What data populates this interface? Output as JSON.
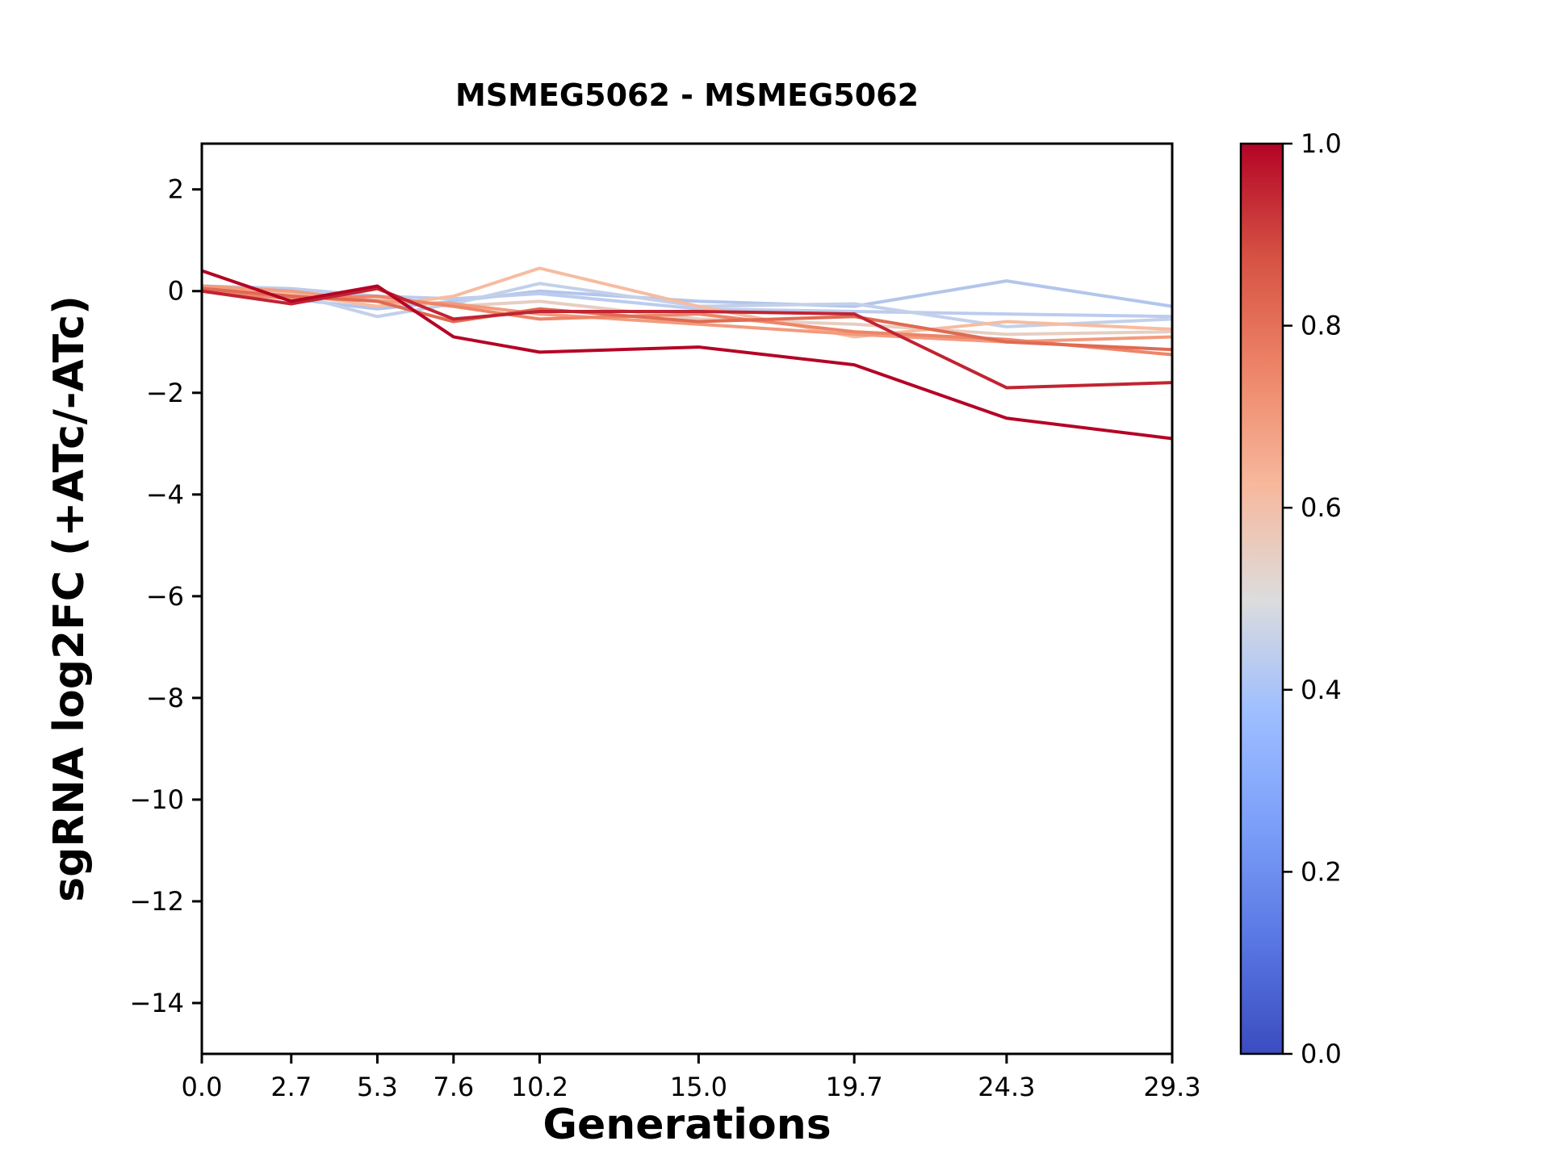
{
  "chart_data": {
    "type": "line",
    "title": "MSMEG5062 - MSMEG5062",
    "xlabel": "Generations",
    "ylabel": "sgRNA log2FC (+ATc/-ATc)",
    "xlim": [
      0.0,
      29.3
    ],
    "ylim": [
      -15.0,
      2.9
    ],
    "grid": false,
    "x": [
      0.0,
      2.7,
      5.3,
      7.6,
      10.2,
      15.0,
      19.7,
      24.3,
      29.3
    ],
    "xticks": {
      "values": [
        0.0,
        2.7,
        5.3,
        7.6,
        10.2,
        15.0,
        19.7,
        24.3,
        29.3
      ],
      "labels": [
        "0.0",
        "2.7",
        "5.3",
        "7.6",
        "10.2",
        "15.0",
        "19.7",
        "24.3",
        "29.3"
      ]
    },
    "yticks": {
      "values": [
        2,
        0,
        -2,
        -4,
        -6,
        -8,
        -10,
        -12,
        -14
      ],
      "labels": [
        "2",
        "0",
        "−2",
        "−4",
        "−6",
        "−8",
        "−10",
        "−12",
        "−14"
      ]
    },
    "series": [
      {
        "colormap_value": 1.0,
        "color": "#b40426",
        "y": [
          0.4,
          -0.2,
          0.1,
          -0.9,
          -1.2,
          -1.1,
          -1.45,
          -2.5,
          -2.9
        ]
      },
      {
        "colormap_value": 0.95,
        "color": "#c12432",
        "y": [
          0.0,
          -0.25,
          0.05,
          -0.55,
          -0.4,
          -0.4,
          -0.45,
          -1.9,
          -1.8
        ]
      },
      {
        "colormap_value": 0.82,
        "color": "#e06a52",
        "y": [
          0.05,
          -0.1,
          -0.2,
          -0.6,
          -0.35,
          -0.6,
          -0.5,
          -1.0,
          -1.15
        ]
      },
      {
        "colormap_value": 0.75,
        "color": "#ee8568",
        "y": [
          0.0,
          -0.15,
          -0.1,
          -0.3,
          -0.55,
          -0.45,
          -0.8,
          -0.95,
          -1.25
        ]
      },
      {
        "colormap_value": 0.68,
        "color": "#f29b7d",
        "y": [
          0.1,
          0.0,
          -0.2,
          -0.25,
          -0.45,
          -0.65,
          -0.85,
          -1.0,
          -0.9
        ]
      },
      {
        "colormap_value": 0.6,
        "color": "#f6bca0",
        "y": [
          0.05,
          -0.05,
          -0.3,
          -0.1,
          0.45,
          -0.3,
          -0.9,
          -0.6,
          -0.75
        ]
      },
      {
        "colormap_value": 0.55,
        "color": "#e7cec2",
        "y": [
          0.0,
          -0.1,
          -0.15,
          -0.3,
          -0.2,
          -0.55,
          -0.65,
          -0.85,
          -0.8
        ]
      },
      {
        "colormap_value": 0.45,
        "color": "#c3d0ea",
        "y": [
          0.05,
          -0.05,
          -0.5,
          -0.25,
          0.15,
          -0.3,
          -0.25,
          -0.7,
          -0.55
        ]
      },
      {
        "colormap_value": 0.42,
        "color": "#bcccee",
        "y": [
          0.1,
          0.05,
          -0.1,
          -0.15,
          -0.05,
          -0.35,
          -0.4,
          -0.45,
          -0.5
        ]
      },
      {
        "colormap_value": 0.4,
        "color": "#b2c5ec",
        "y": [
          0.0,
          -0.15,
          -0.35,
          -0.2,
          0.0,
          -0.2,
          -0.3,
          0.2,
          -0.3
        ]
      }
    ],
    "colorbar": {
      "colormap": "coolwarm",
      "min": 0.0,
      "max": 1.0,
      "tick_values": [
        0.0,
        0.2,
        0.4,
        0.6,
        0.8,
        1.0
      ],
      "tick_labels": [
        "0.0",
        "0.2",
        "0.4",
        "0.6",
        "0.8",
        "1.0"
      ],
      "gradient_stops": [
        {
          "at": 0.0,
          "color": "#3b4cc0"
        },
        {
          "at": 0.125,
          "color": "#5977e3"
        },
        {
          "at": 0.25,
          "color": "#7b9ff9"
        },
        {
          "at": 0.375,
          "color": "#9ebeff"
        },
        {
          "at": 0.5,
          "color": "#dcdcdc"
        },
        {
          "at": 0.625,
          "color": "#f7b89c"
        },
        {
          "at": 0.75,
          "color": "#ee8568"
        },
        {
          "at": 0.875,
          "color": "#d65244"
        },
        {
          "at": 1.0,
          "color": "#b40426"
        }
      ]
    },
    "colors": {
      "axis": "#000000",
      "background": "#ffffff"
    }
  }
}
